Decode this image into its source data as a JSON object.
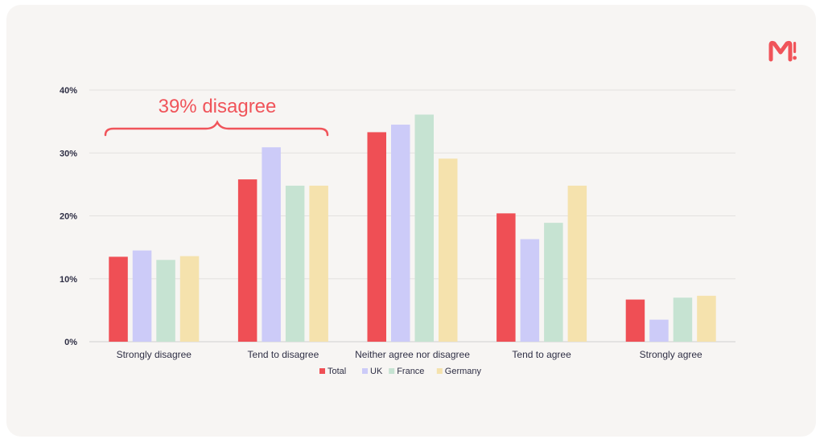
{
  "brand": {
    "logo_text": "M!",
    "accent_color": "#f0545a"
  },
  "annotation": {
    "text": "39% disagree",
    "color": "#f0545a"
  },
  "chart_data": {
    "type": "bar",
    "title": "",
    "xlabel": "",
    "ylabel": "",
    "ylim": [
      0,
      40
    ],
    "yticks": [
      0,
      10,
      20,
      30,
      40
    ],
    "ytick_labels": [
      "0%",
      "10%",
      "20%",
      "30%",
      "40%"
    ],
    "grid": true,
    "legend_position": "bottom-center",
    "categories": [
      "Strongly disagree",
      "Tend to disagree",
      "Neither agree nor disagree",
      "Tend to agree",
      "Strongly agree"
    ],
    "series": [
      {
        "name": "Total",
        "color": "#ef4f55",
        "values": [
          13.5,
          25.8,
          33.3,
          20.4,
          6.7
        ]
      },
      {
        "name": "UK",
        "color": "#cccbf8",
        "values": [
          14.5,
          30.9,
          34.5,
          16.3,
          3.5
        ]
      },
      {
        "name": "France",
        "color": "#c6e3d2",
        "values": [
          13.0,
          24.8,
          36.1,
          18.9,
          7.0
        ]
      },
      {
        "name": "Germany",
        "color": "#f5e2ad",
        "values": [
          13.6,
          24.8,
          29.1,
          24.8,
          7.3
        ]
      }
    ]
  }
}
